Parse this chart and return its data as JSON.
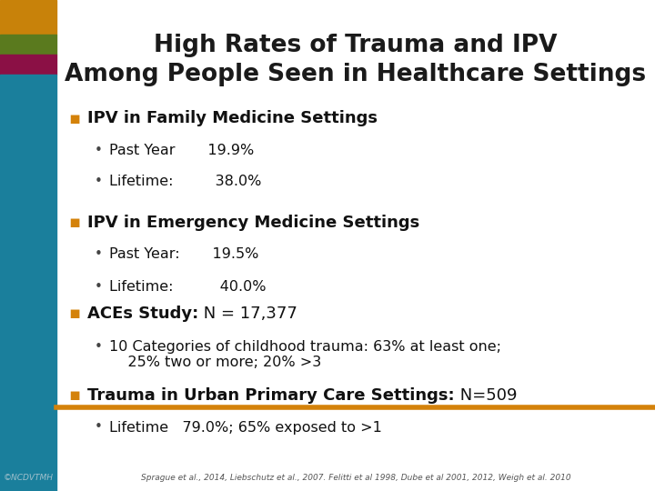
{
  "title_line1": "High Rates of Trauma and IPV",
  "title_line2": "Among People Seen in Healthcare Settings",
  "bg_color": "#ffffff",
  "left_bar_colors": [
    "#c8820a",
    "#5a7a1e",
    "#8b1045",
    "#1a7f9c"
  ],
  "orange_line_color": "#d4820a",
  "bullet_color": "#d4820a",
  "title_color": "#1a1a1a",
  "footnote_color": "#555555",
  "copyright_color": "#a0c0cc",
  "sections": [
    {
      "header_bold": "IPV in Family Medicine Settings",
      "header_normal": "",
      "items": [
        "Past Year       19.9%",
        "Lifetime:         38.0%"
      ]
    },
    {
      "header_bold": "IPV in Emergency Medicine Settings",
      "header_normal": "",
      "items": [
        "Past Year:       19.5%",
        "Lifetime:          40.0%"
      ]
    },
    {
      "header_bold": "ACEs Study:",
      "header_normal": " N = 17,377",
      "items": [
        "10 Categories of childhood trauma: 63% at least one;\n    25% two or more; 20% >3"
      ]
    },
    {
      "header_bold": "Trauma in Urban Primary Care Settings:",
      "header_normal": " N=509",
      "items": [
        "Lifetime   79.0%; 65% exposed to >1"
      ]
    }
  ],
  "footnote": "Sprague et al., 2014, Liebschutz et al., 2007. Felitti et al 1998, Dube et al 2001, 2012, Weigh et al. 2010",
  "copyright": "©NCDVTMH"
}
